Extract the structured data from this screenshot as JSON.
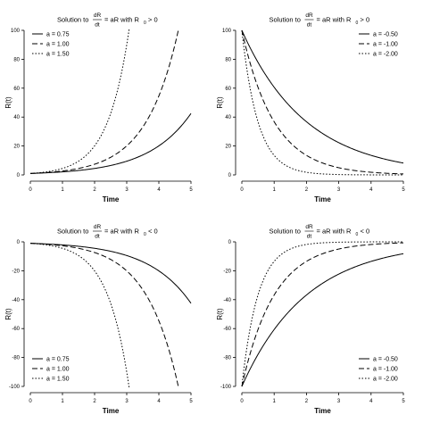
{
  "chart_data": [
    {
      "type": "line",
      "title_prefix": "Solution to",
      "title_frac_num": "dR",
      "title_frac_den": "dt",
      "title_mid": "= aR with R",
      "title_sub": "0",
      "title_suffix": "> 0",
      "xlabel": "Time",
      "ylabel": "R(t)",
      "xlim": [
        0,
        5
      ],
      "ylim": [
        0,
        100
      ],
      "xticks": [
        "0",
        "1",
        "2",
        "3",
        "4",
        "5"
      ],
      "yticks": [
        "0",
        "20",
        "40",
        "60",
        "80",
        "100"
      ],
      "ytick_values": [
        0,
        20,
        40,
        60,
        80,
        100
      ],
      "r0": 1,
      "legend_position": "top-left",
      "series": [
        {
          "name": "a = 0.75",
          "a": 0.75,
          "dash": "solid"
        },
        {
          "name": "a = 1.00",
          "a": 1.0,
          "dash": "dashed"
        },
        {
          "name": "a = 1.50",
          "a": 1.5,
          "dash": "dotted"
        }
      ]
    },
    {
      "type": "line",
      "title_prefix": "Solution to",
      "title_frac_num": "dR",
      "title_frac_den": "dt",
      "title_mid": "= aR with R",
      "title_sub": "0",
      "title_suffix": "> 0",
      "xlabel": "Time",
      "ylabel": "R(t)",
      "xlim": [
        0,
        5
      ],
      "ylim": [
        0,
        100
      ],
      "xticks": [
        "0",
        "1",
        "2",
        "3",
        "4",
        "5"
      ],
      "yticks": [
        "0",
        "20",
        "40",
        "60",
        "80",
        "100"
      ],
      "ytick_values": [
        0,
        20,
        40,
        60,
        80,
        100
      ],
      "r0": 100,
      "legend_position": "top-right",
      "series": [
        {
          "name": "a = -0.50",
          "a": -0.5,
          "dash": "solid"
        },
        {
          "name": "a = -1.00",
          "a": -1.0,
          "dash": "dashed"
        },
        {
          "name": "a = -2.00",
          "a": -2.0,
          "dash": "dotted"
        }
      ]
    },
    {
      "type": "line",
      "title_prefix": "Solution to",
      "title_frac_num": "dR",
      "title_frac_den": "dt",
      "title_mid": "= aR with R",
      "title_sub": "0",
      "title_suffix": "< 0",
      "xlabel": "Time",
      "ylabel": "R(t)",
      "xlim": [
        0,
        5
      ],
      "ylim": [
        -100,
        0
      ],
      "xticks": [
        "0",
        "1",
        "2",
        "3",
        "4",
        "5"
      ],
      "yticks": [
        "-100",
        "-80",
        "-60",
        "-40",
        "-20",
        "0"
      ],
      "ytick_values": [
        -100,
        -80,
        -60,
        -40,
        -20,
        0
      ],
      "r0": -1,
      "legend_position": "bottom-left",
      "series": [
        {
          "name": "a = 0.75",
          "a": 0.75,
          "dash": "solid"
        },
        {
          "name": "a = 1.00",
          "a": 1.0,
          "dash": "dashed"
        },
        {
          "name": "a = 1.50",
          "a": 1.5,
          "dash": "dotted"
        }
      ]
    },
    {
      "type": "line",
      "title_prefix": "Solution to",
      "title_frac_num": "dR",
      "title_frac_den": "dt",
      "title_mid": "= aR with R",
      "title_sub": "0",
      "title_suffix": "< 0",
      "xlabel": "Time",
      "ylabel": "R(t)",
      "xlim": [
        0,
        5
      ],
      "ylim": [
        -100,
        0
      ],
      "xticks": [
        "0",
        "1",
        "2",
        "3",
        "4",
        "5"
      ],
      "yticks": [
        "-100",
        "-80",
        "-60",
        "-40",
        "-20",
        "0"
      ],
      "ytick_values": [
        -100,
        -80,
        -60,
        -40,
        -20,
        0
      ],
      "r0": -100,
      "legend_position": "bottom-right",
      "series": [
        {
          "name": "a = -0.50",
          "a": -0.5,
          "dash": "solid"
        },
        {
          "name": "a = -1.00",
          "a": -1.0,
          "dash": "dashed"
        },
        {
          "name": "a = -2.00",
          "a": -2.0,
          "dash": "dotted"
        }
      ]
    }
  ]
}
